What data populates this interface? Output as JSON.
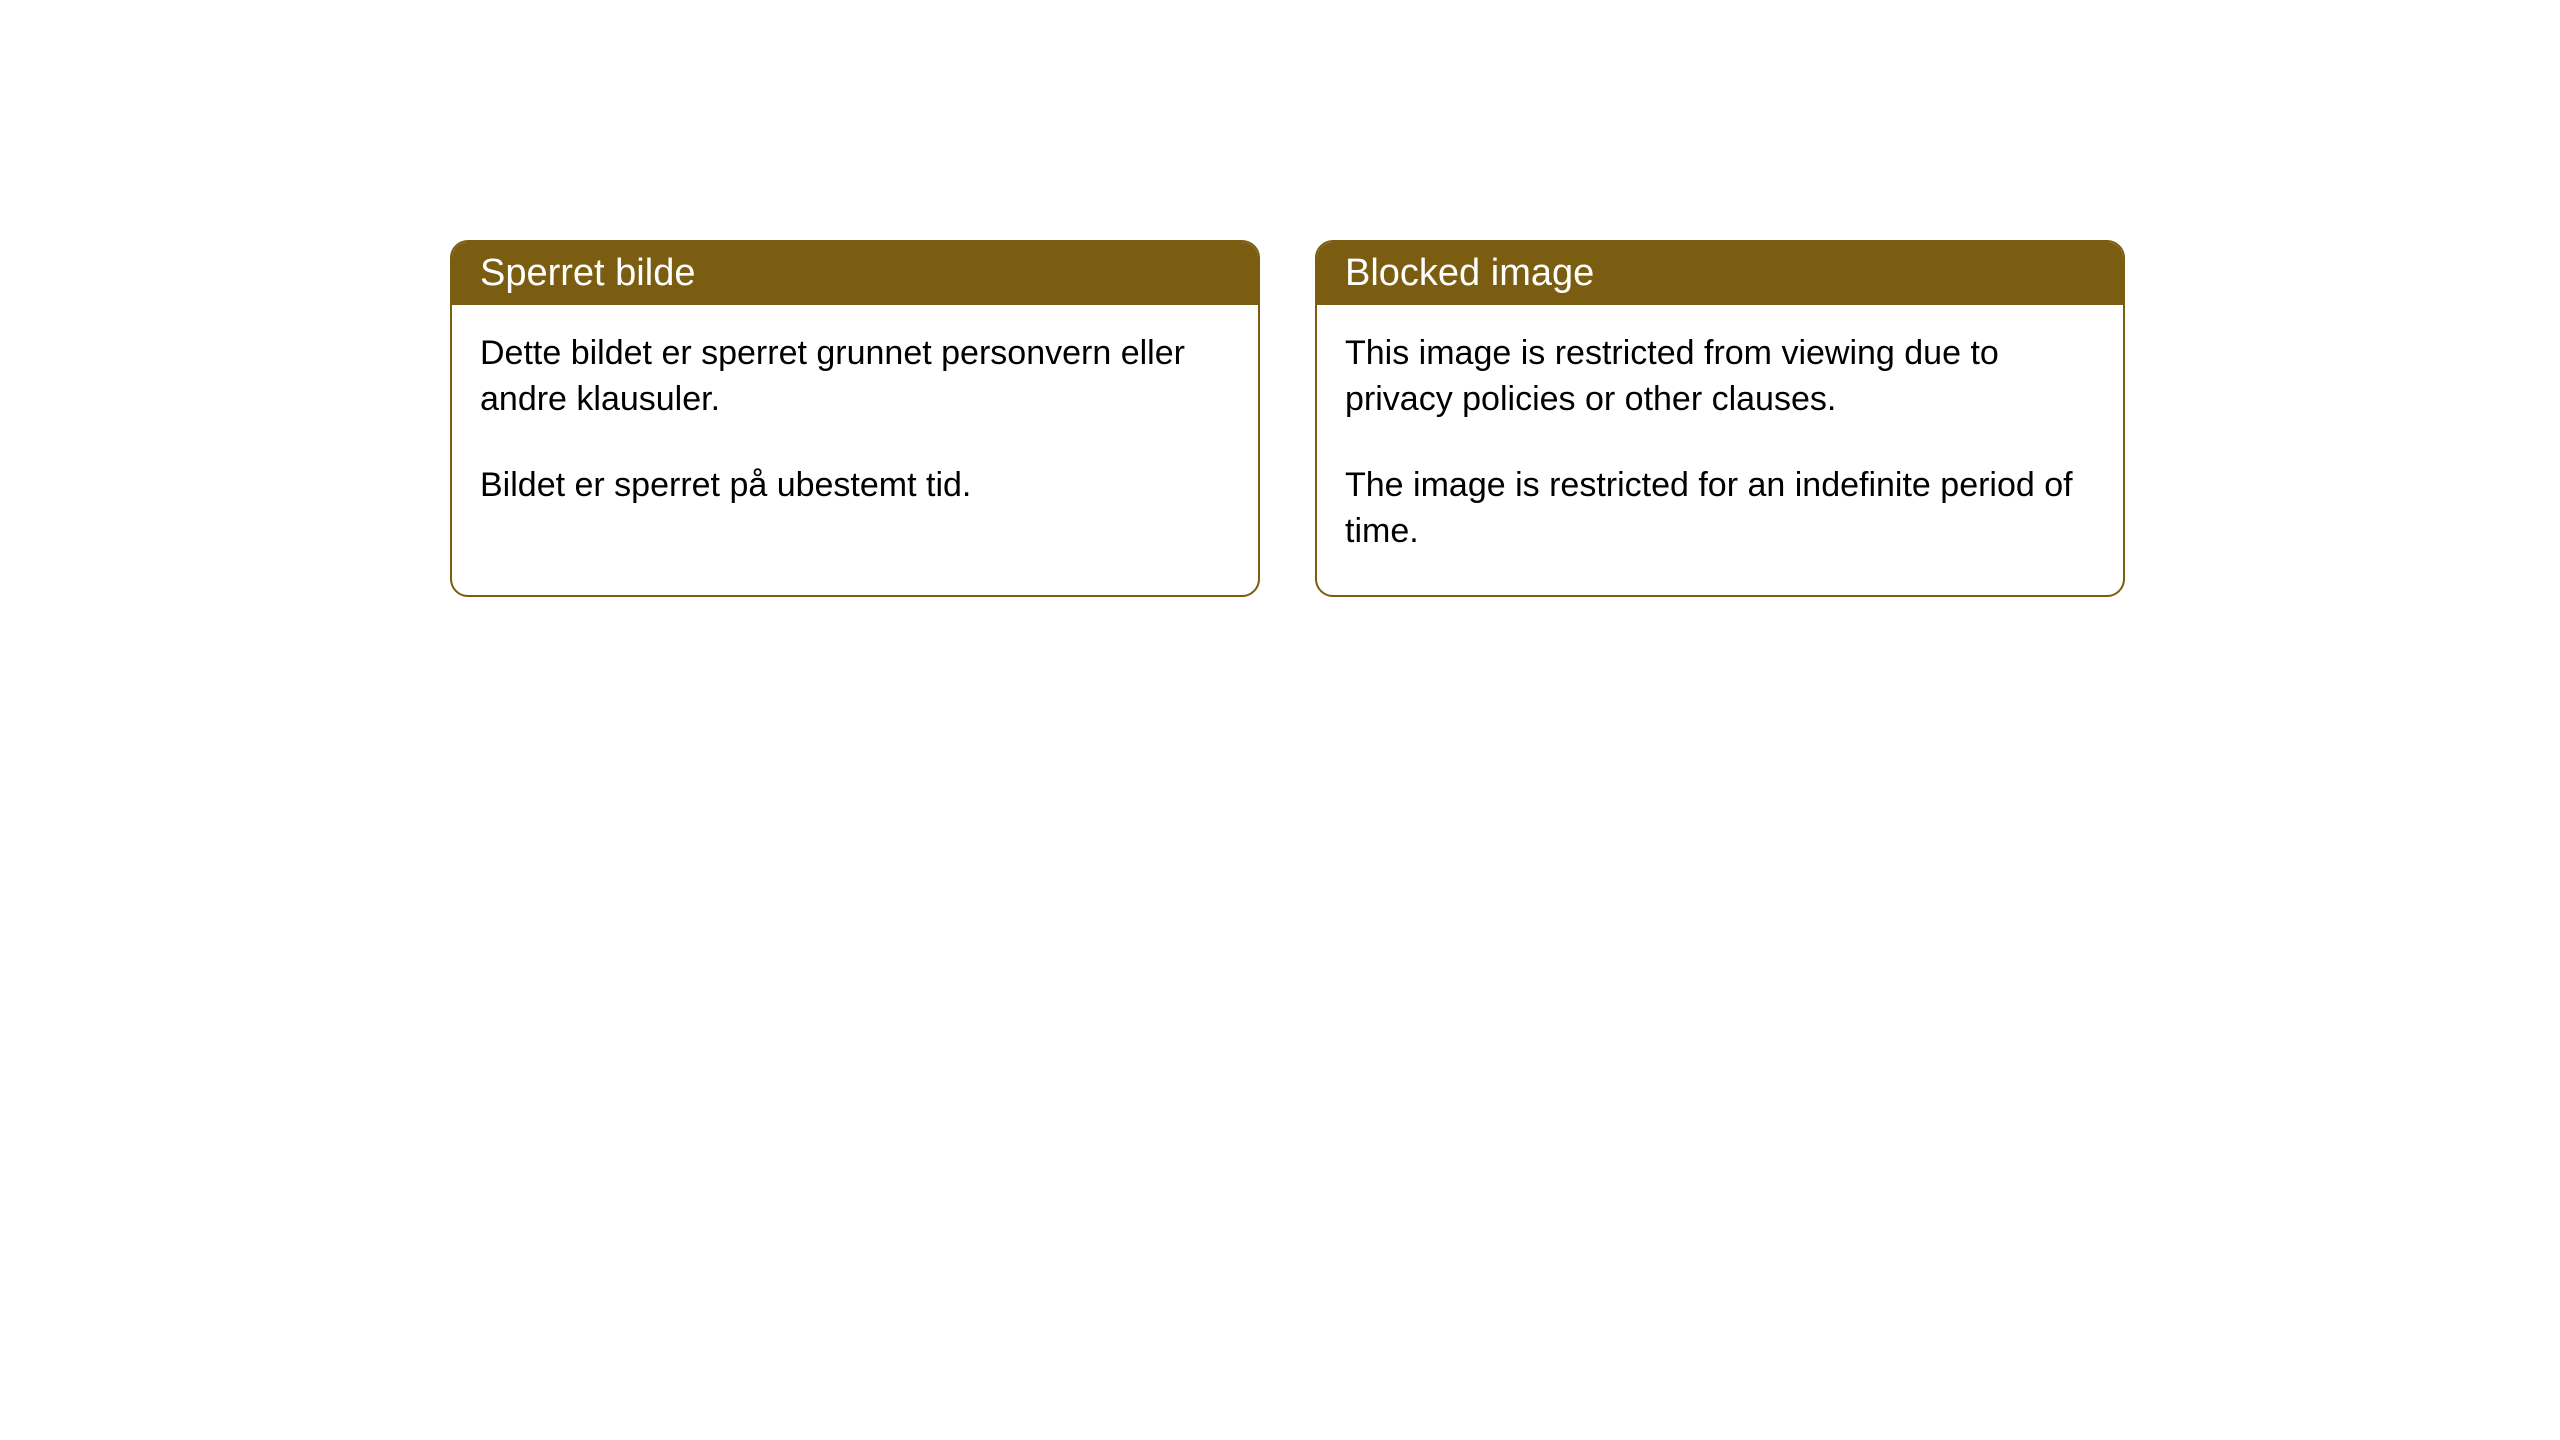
{
  "notices": [
    {
      "title": "Sperret bilde",
      "paragraph1": "Dette bildet er sperret grunnet personvern eller andre klausuler.",
      "paragraph2": "Bildet er sperret på ubestemt tid."
    },
    {
      "title": "Blocked image",
      "paragraph1": "This image is restricted from viewing due to privacy policies or other clauses.",
      "paragraph2": "The image is restricted for an indefinite period of time."
    }
  ],
  "styling": {
    "header_background": "#7a5d11",
    "header_text_color": "#ffffff",
    "border_color": "#7a5d11",
    "body_background": "#ffffff",
    "body_text_color": "#000000",
    "border_radius": 18,
    "title_fontsize": 38,
    "body_fontsize": 34
  }
}
